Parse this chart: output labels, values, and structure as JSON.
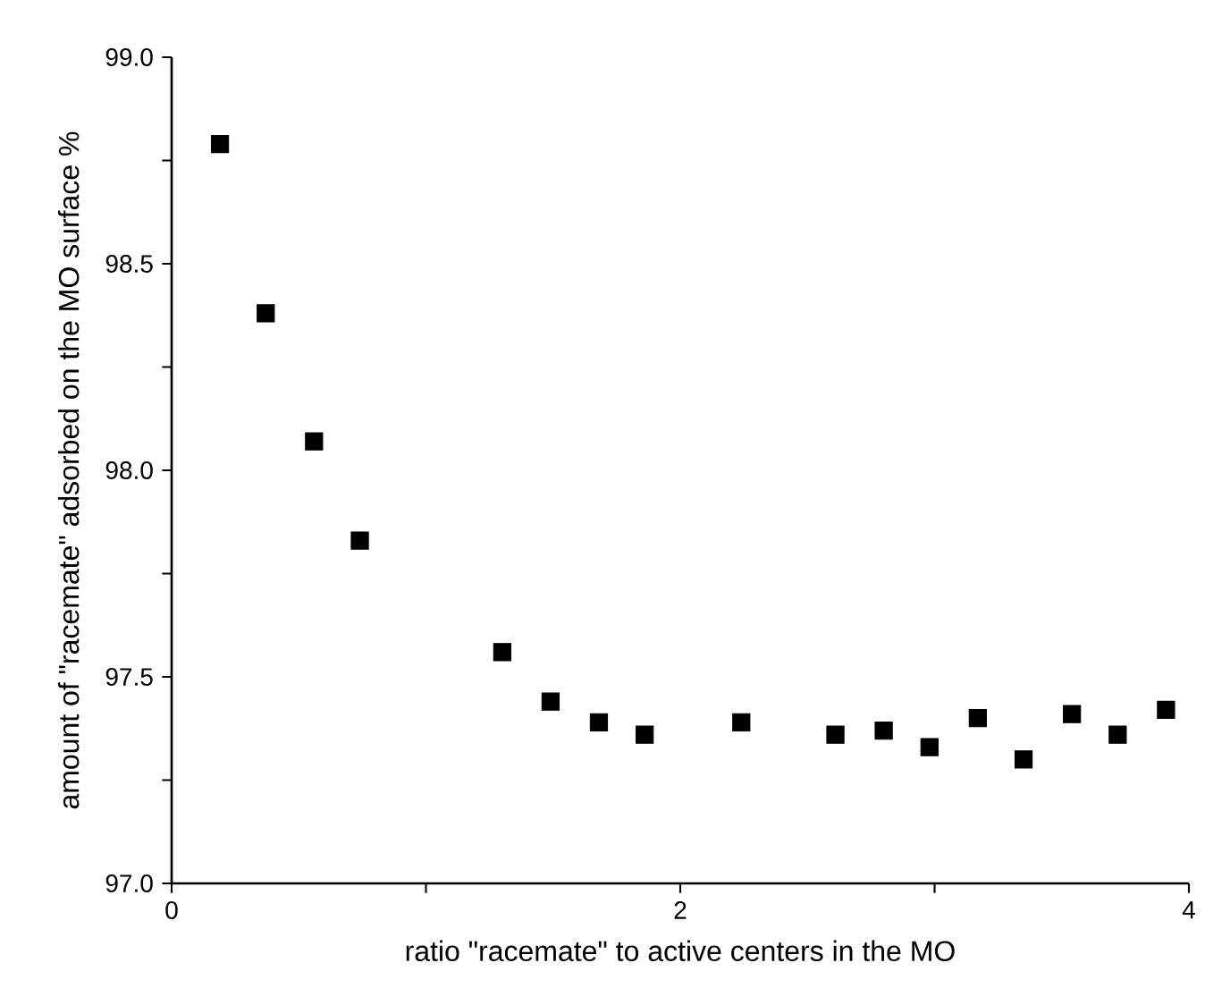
{
  "chart_data": {
    "type": "scatter",
    "xlabel": "ratio \"racemate\" to active centers in the MO",
    "ylabel": "amount of \"racemate\" adsorbed on the MO surface %",
    "x": [
      0.19,
      0.37,
      0.56,
      0.74,
      1.3,
      1.49,
      1.68,
      1.86,
      2.24,
      2.61,
      2.8,
      2.98,
      3.17,
      3.35,
      3.54,
      3.72,
      3.91
    ],
    "values": [
      98.79,
      98.38,
      98.07,
      97.83,
      97.56,
      97.44,
      97.39,
      97.36,
      97.39,
      97.36,
      97.37,
      97.33,
      97.4,
      97.3,
      97.41,
      97.36,
      97.42
    ],
    "color": "#000000",
    "marker": "square",
    "xlim": [
      0,
      4
    ],
    "ylim": [
      97,
      99
    ],
    "xticks": [
      0,
      {
        "value": 1,
        "label": null
      },
      2,
      {
        "value": 3,
        "label": null
      },
      4
    ],
    "yticks": [
      {
        "value": 97,
        "label": "97.0"
      },
      {
        "value": 97.25,
        "label": null
      },
      {
        "value": 97.5,
        "label": "97.5"
      },
      {
        "value": 97.75,
        "label": null
      },
      {
        "value": 98,
        "label": "98.0"
      },
      {
        "value": 98.25,
        "label": null
      },
      {
        "value": 98.5,
        "label": "98.5"
      },
      {
        "value": 98.75,
        "label": null
      },
      {
        "value": 99,
        "label": "99.0"
      }
    ]
  }
}
